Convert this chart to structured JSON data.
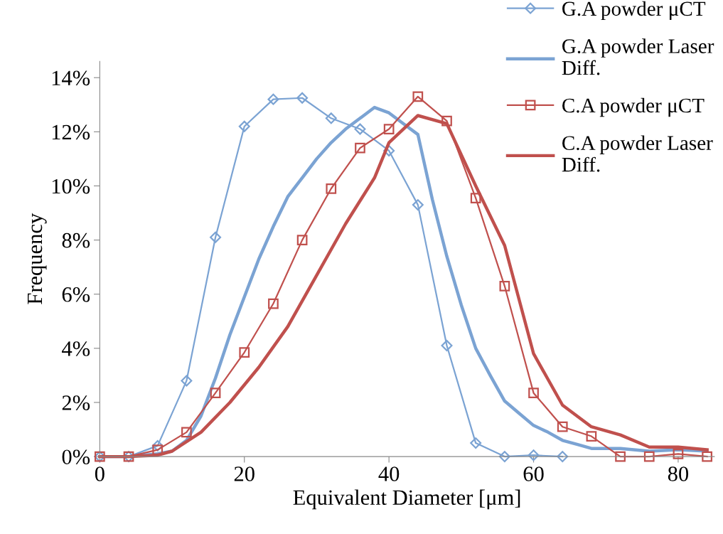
{
  "chart_data": {
    "type": "line",
    "xlabel": "Equivalent Diameter [μm]",
    "ylabel": "Frequency",
    "xlim": [
      0,
      85
    ],
    "xticks": [
      0,
      20,
      40,
      60,
      80
    ],
    "ylim": [
      0,
      14.6
    ],
    "yticks": [
      {
        "value": 0,
        "label": "0%"
      },
      {
        "value": 2,
        "label": "2%"
      },
      {
        "value": 4,
        "label": "4%"
      },
      {
        "value": 6,
        "label": "6%"
      },
      {
        "value": 8,
        "label": "8%"
      },
      {
        "value": 10,
        "label": "10%"
      },
      {
        "value": 12,
        "label": "12%"
      },
      {
        "value": 14,
        "label": "14%"
      }
    ],
    "grid": false,
    "legend": "top right",
    "series": [
      {
        "name": "G.A powder μCT",
        "color": "#7ba3d3",
        "marker": "diamond",
        "x": [
          0,
          4,
          8,
          12,
          16,
          20,
          24,
          28,
          32,
          36,
          40,
          44,
          48,
          52,
          56,
          60,
          64
        ],
        "values": [
          0,
          0,
          0.4,
          2.8,
          8.1,
          12.2,
          13.2,
          13.25,
          12.5,
          12.1,
          11.3,
          9.3,
          4.1,
          0.5,
          0,
          0.05,
          0
        ]
      },
      {
        "name": "G.A powder Laser Diff.",
        "color": "#7ba3d3",
        "marker": "none",
        "x": [
          0,
          4,
          8,
          10,
          12,
          14,
          16,
          18,
          20,
          22,
          24,
          26,
          28,
          30,
          32,
          34,
          36,
          38,
          40,
          42,
          44,
          46,
          48,
          50,
          52,
          54,
          56,
          58,
          60,
          62,
          64,
          66,
          68,
          72,
          76,
          80,
          84
        ],
        "values": [
          0,
          0,
          0.1,
          0.2,
          0.6,
          1.5,
          2.9,
          4.5,
          5.9,
          7.3,
          8.5,
          9.6,
          10.3,
          11.0,
          11.6,
          12.1,
          12.5,
          12.9,
          12.7,
          12.3,
          11.9,
          9.5,
          7.4,
          5.6,
          4.0,
          3.0,
          2.05,
          1.6,
          1.15,
          0.9,
          0.6,
          0.45,
          0.3,
          0.3,
          0.2,
          0.25,
          0.2
        ]
      },
      {
        "name": "C.A powder μCT",
        "color": "#c0504d",
        "marker": "square",
        "x": [
          0,
          4,
          8,
          12,
          16,
          20,
          24,
          28,
          32,
          36,
          40,
          44,
          48,
          52,
          56,
          60,
          64,
          68,
          72,
          76,
          80,
          84
        ],
        "values": [
          0,
          0,
          0.25,
          0.9,
          2.35,
          3.85,
          5.65,
          8.0,
          9.9,
          11.4,
          12.1,
          13.3,
          12.4,
          9.55,
          6.3,
          2.35,
          1.1,
          0.75,
          0,
          0,
          0.1,
          0
        ]
      },
      {
        "name": "C.A powder Laser Diff.",
        "color": "#c0504d",
        "marker": "none",
        "x": [
          0,
          4,
          8,
          10,
          14,
          18,
          22,
          26,
          30,
          34,
          38,
          40,
          44,
          48,
          52,
          56,
          60,
          64,
          68,
          72,
          76,
          80,
          84
        ],
        "values": [
          0,
          0,
          0.05,
          0.2,
          0.9,
          2.0,
          3.3,
          4.8,
          6.7,
          8.6,
          10.3,
          11.6,
          12.6,
          12.3,
          10.0,
          7.8,
          3.8,
          1.9,
          1.1,
          0.8,
          0.35,
          0.35,
          0.25
        ]
      }
    ]
  }
}
